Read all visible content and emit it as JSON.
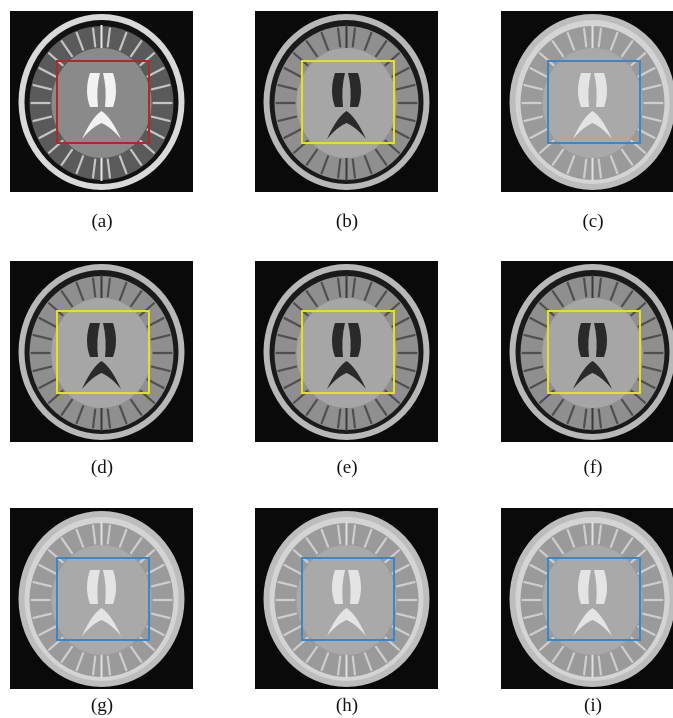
{
  "figure": {
    "panels": [
      {
        "caption": "(a)",
        "style": "t2-contrast",
        "roi_color": "#b3262a"
      },
      {
        "caption": "(b)",
        "style": "t1",
        "roi_color": "#e6e21a"
      },
      {
        "caption": "(c)",
        "style": "t2-light",
        "roi_color": "#3b86c8"
      },
      {
        "caption": "(d)",
        "style": "t1",
        "roi_color": "#e6e21a"
      },
      {
        "caption": "(e)",
        "style": "t1",
        "roi_color": "#e6e21a"
      },
      {
        "caption": "(f)",
        "style": "t1",
        "roi_color": "#e6e21a"
      },
      {
        "caption": "(g)",
        "style": "t2-light",
        "roi_color": "#3b86c8"
      },
      {
        "caption": "(h)",
        "style": "t2-light",
        "roi_color": "#3b86c8"
      },
      {
        "caption": "(i)",
        "style": "t2-light",
        "roi_color": "#3b86c8"
      }
    ]
  }
}
